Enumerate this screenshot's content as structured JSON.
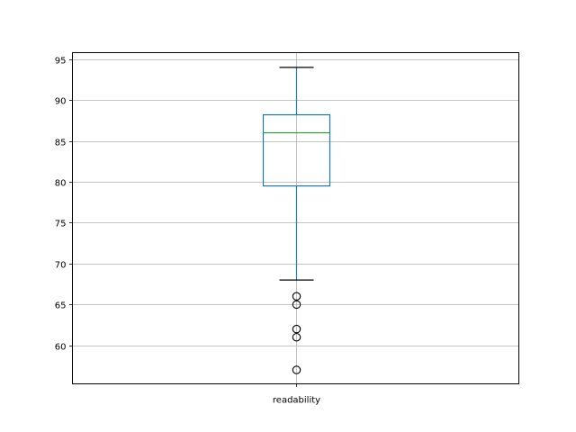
{
  "chart_data": {
    "type": "boxplot",
    "title": "",
    "xlabel": "",
    "ylabel": "",
    "categories": [
      "readability"
    ],
    "boxes": [
      {
        "label": "readability",
        "whisker_low": 68,
        "q1": 79.5,
        "median": 86,
        "q3": 88.2,
        "whisker_high": 94,
        "outliers": [
          66,
          65,
          62,
          61,
          57
        ]
      }
    ],
    "ylim": [
      55.3,
      95.8
    ],
    "yticks": [
      60,
      65,
      70,
      75,
      80,
      85,
      90,
      95
    ],
    "ytick_labels": [
      "60",
      "65",
      "70",
      "75",
      "80",
      "85",
      "90",
      "95"
    ],
    "grid": true,
    "colors": {
      "box": "#1f77b4",
      "median": "#2ca02c",
      "caps": "#000000",
      "grid": "#b0b0b0",
      "outlier_edge": "#000000"
    }
  }
}
